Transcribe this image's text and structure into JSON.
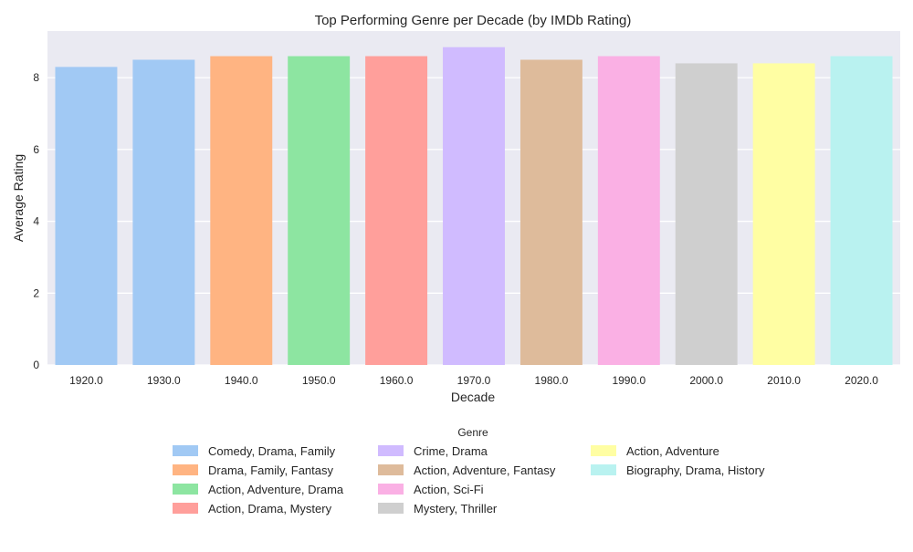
{
  "chart_data": {
    "type": "bar",
    "title": "Top Performing Genre per Decade (by IMDb Rating)",
    "xlabel": "Decade",
    "ylabel": "Average Rating",
    "categories": [
      "1920.0",
      "1930.0",
      "1940.0",
      "1950.0",
      "1960.0",
      "1970.0",
      "1980.0",
      "1990.0",
      "2000.0",
      "2010.0",
      "2020.0"
    ],
    "values": [
      8.3,
      8.5,
      8.6,
      8.6,
      8.6,
      8.85,
      8.5,
      8.6,
      8.4,
      8.4,
      8.6
    ],
    "bar_genres": [
      "Comedy, Drama, Family",
      "Comedy, Drama, Family",
      "Drama, Family, Fantasy",
      "Action, Adventure, Drama",
      "Action, Drama, Mystery",
      "Crime, Drama",
      "Action, Adventure, Fantasy",
      "Action, Sci-Fi",
      "Mystery, Thriller",
      "Action, Adventure",
      "Biography, Drama, History"
    ],
    "ylim": [
      0,
      9.3
    ],
    "yticks": [
      "0",
      "2",
      "4",
      "6",
      "8"
    ],
    "grid": true,
    "background": "#eaeaf2",
    "legend": {
      "title": "Genre",
      "placement": "bottom-center",
      "columns": 3,
      "entries": [
        {
          "label": "Comedy, Drama, Family",
          "color": "#a1c9f4"
        },
        {
          "label": "Drama, Family, Fantasy",
          "color": "#ffb482"
        },
        {
          "label": "Action, Adventure, Drama",
          "color": "#8de5a1"
        },
        {
          "label": "Action, Drama, Mystery",
          "color": "#ff9f9b"
        },
        {
          "label": "Crime, Drama",
          "color": "#d0bbff"
        },
        {
          "label": "Action, Adventure, Fantasy",
          "color": "#debb9b"
        },
        {
          "label": "Action, Sci-Fi",
          "color": "#fab0e4"
        },
        {
          "label": "Mystery, Thriller",
          "color": "#cfcfcf"
        },
        {
          "label": "Action, Adventure",
          "color": "#fffea3"
        },
        {
          "label": "Biography, Drama, History",
          "color": "#b9f2f0"
        }
      ]
    }
  }
}
